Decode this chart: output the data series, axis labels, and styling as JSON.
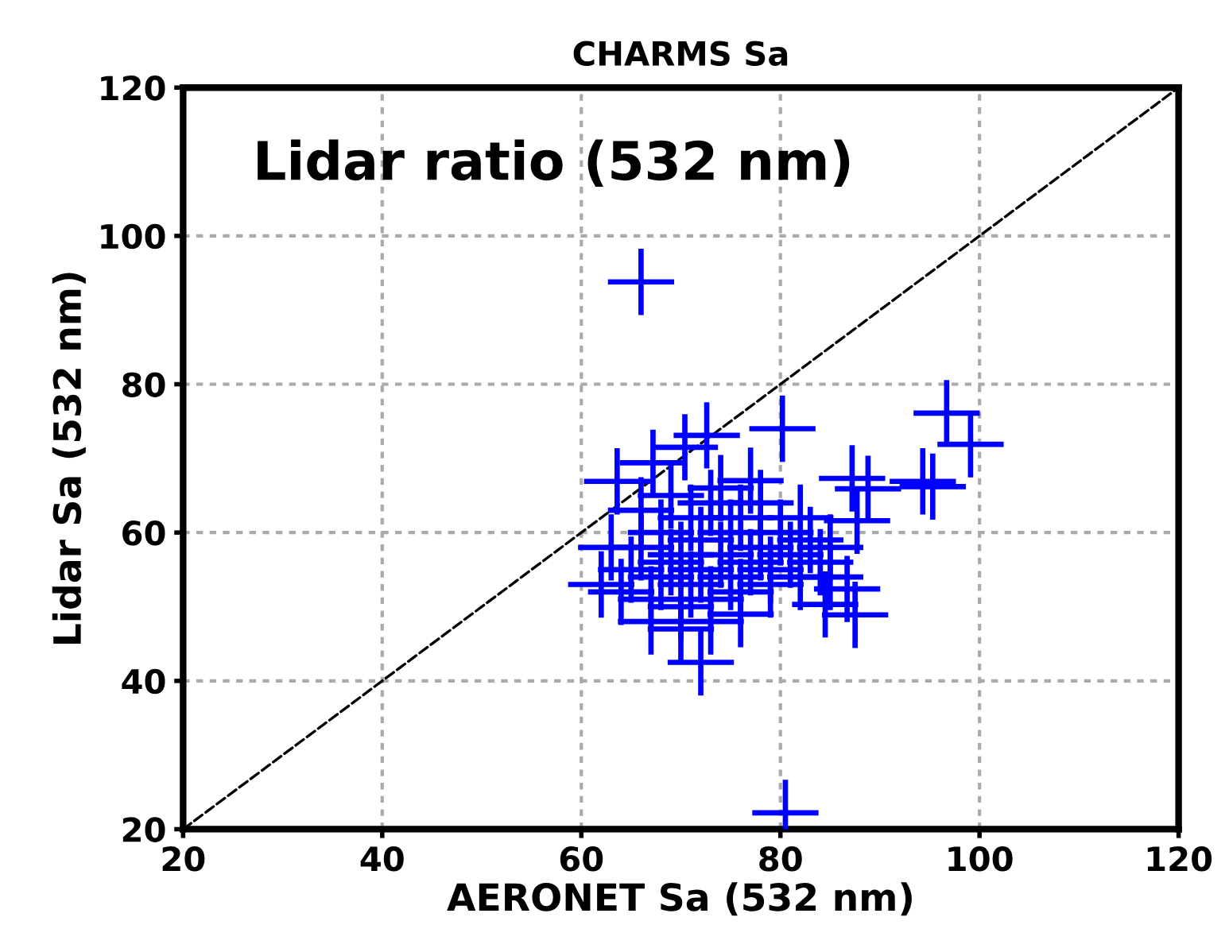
{
  "chart_data": {
    "type": "scatter",
    "title": "CHARMS Sa",
    "xlabel": "AERONET Sa (532 nm)",
    "ylabel": "Lidar Sa (532 nm)",
    "annotations": [
      "Lidar ratio (532 nm)"
    ],
    "xlim": [
      20,
      120
    ],
    "ylim": [
      20,
      120
    ],
    "xticks": [
      20,
      40,
      60,
      80,
      100,
      120
    ],
    "yticks": [
      20,
      40,
      60,
      80,
      100,
      120
    ],
    "grid": true,
    "marker": "cross",
    "series": [
      {
        "color": "#0000ff",
        "x": [
          66,
          96.7,
          99.1,
          80.2,
          72.6,
          72,
          80.5,
          94.3,
          95.3,
          87.2,
          88.8,
          63.6,
          67.2,
          70.4,
          86.7,
          87.5,
          84.5,
          87.7,
          64,
          65,
          66,
          67,
          68,
          68,
          69,
          70,
          70,
          71,
          71,
          72,
          72,
          73,
          73,
          74,
          75,
          75,
          76,
          76,
          77,
          78,
          78,
          79,
          80,
          81,
          82,
          83,
          84,
          85,
          66,
          69,
          74,
          77,
          82,
          62,
          63,
          67,
          70,
          73,
          76,
          79,
          85
        ],
        "values": [
          93.8,
          76.1,
          71.9,
          74,
          73.1,
          42.5,
          22.2,
          66.9,
          66.2,
          67.3,
          65.9,
          66.9,
          69.4,
          71.5,
          52.4,
          48.9,
          50.3,
          61.6,
          52,
          55,
          58,
          51,
          54,
          60,
          56,
          50,
          57,
          53,
          62,
          55,
          59,
          51,
          64,
          57,
          54,
          60,
          52,
          62,
          56,
          58,
          64,
          55,
          60,
          57,
          54,
          59,
          56,
          58,
          63,
          65,
          66,
          67,
          62,
          53,
          58,
          48,
          47,
          48,
          49,
          53,
          54
        ]
      },
      {
        "type": "line",
        "color": "#000000",
        "line_style": "dashed",
        "marker": "none",
        "x": [
          20,
          120
        ],
        "values": [
          20,
          120
        ]
      }
    ]
  }
}
